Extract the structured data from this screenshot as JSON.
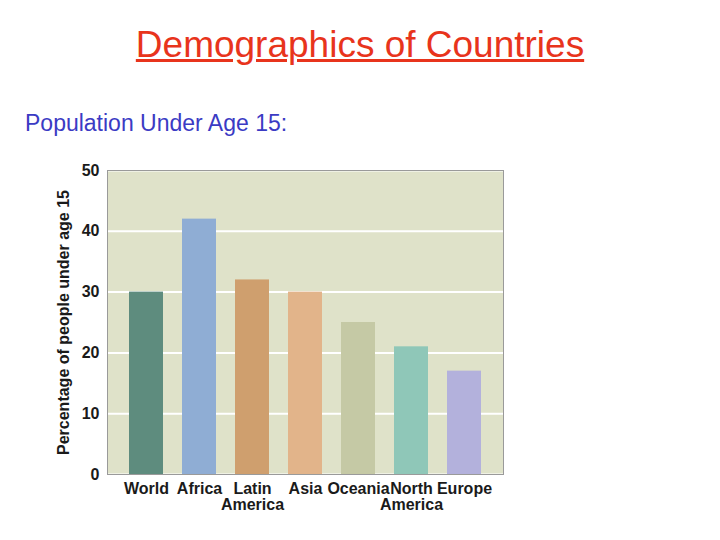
{
  "chart_data": {
    "type": "bar",
    "title": "Demographics of Countries",
    "subtitle": "Population Under Age 15:",
    "ylabel": "Percentage of people under age 15",
    "categories": [
      "World",
      "Africa",
      "Latin America",
      "Asia",
      "Oceania",
      "North America",
      "Europe"
    ],
    "values": [
      30,
      42,
      32,
      30,
      25,
      21,
      17
    ],
    "colors": [
      "#5e8c7e",
      "#8fadd4",
      "#cf9f6e",
      "#e2b48a",
      "#c5c9a5",
      "#8fc7b8",
      "#b3b1dc"
    ],
    "ylim": [
      0,
      50
    ],
    "yticks": [
      0,
      10,
      20,
      30,
      40,
      50
    ],
    "grid": true
  }
}
